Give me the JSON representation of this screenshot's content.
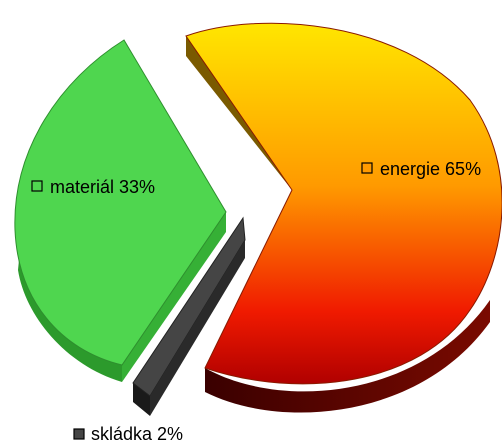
{
  "chart_data": {
    "type": "pie",
    "variant": "exploded-3d",
    "title": "",
    "legend": "inline-labels",
    "series": [
      {
        "name": "",
        "slices": [
          {
            "label": "energie",
            "value": 65,
            "percent_label": "65%",
            "color_top": "#ffe000",
            "color_bottom": "#c80000",
            "side_color": "#5a0000"
          },
          {
            "label": "materiál",
            "value": 33,
            "percent_label": "33%",
            "color_top": "#4fd64f",
            "color_bottom": "#4fd64f",
            "side_color": "#2c8f2c"
          },
          {
            "label": "skládka",
            "value": 2,
            "percent_label": "2%",
            "color_top": "#404040",
            "color_bottom": "#404040",
            "side_color": "#1a1a1a"
          }
        ]
      }
    ]
  }
}
